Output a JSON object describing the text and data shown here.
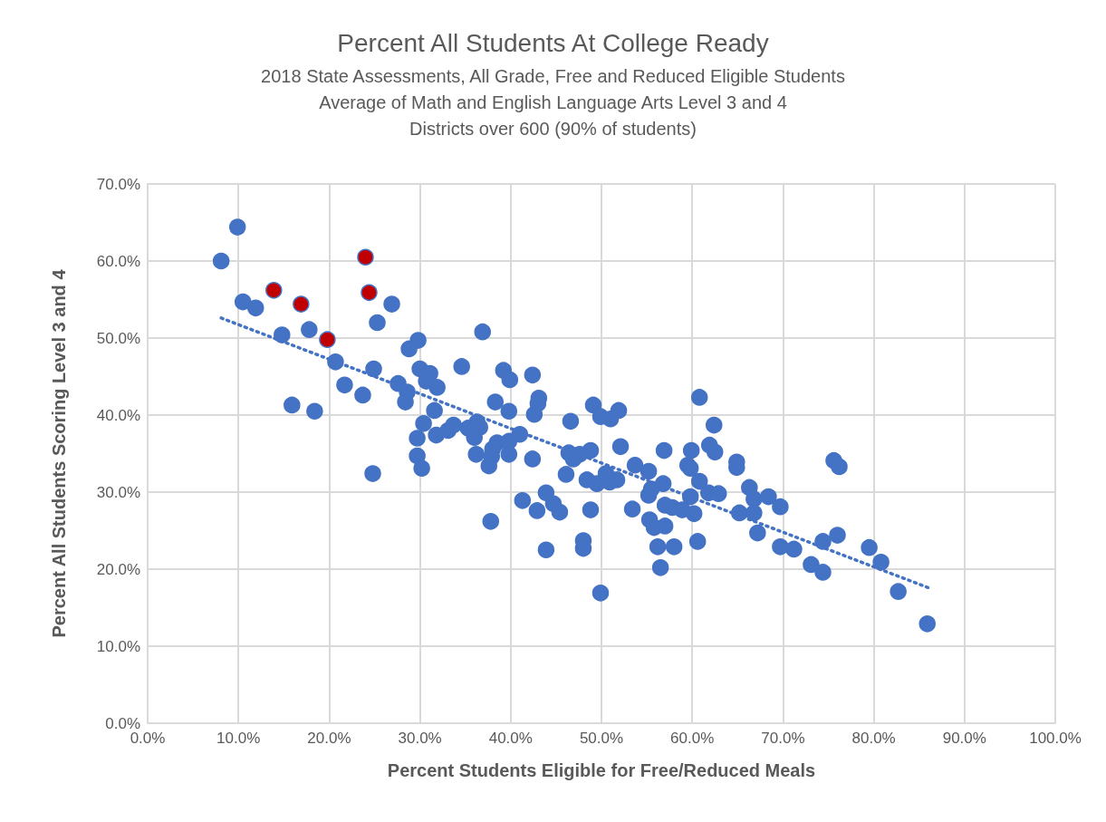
{
  "chart_data": {
    "type": "scatter",
    "title": "Percent All Students At College Ready",
    "subtitle": "2018 State Assessments, All Grade, Free and Reduced Eligible Students\nAverage of Math and English Language Arts Level 3 and 4\nDistricts over 600 (90% of students)",
    "xlabel": "Percent Students Eligible for Free/Reduced Meals",
    "ylabel": "Percent All Students Scoring Level 3 and 4",
    "xlim": [
      0,
      100
    ],
    "xticks": [
      {
        "value": 0,
        "label": "0.0%"
      },
      {
        "value": 10,
        "label": "10.0%"
      },
      {
        "value": 20,
        "label": "20.0%"
      },
      {
        "value": 30,
        "label": "30.0%"
      },
      {
        "value": 40,
        "label": "40.0%"
      },
      {
        "value": 50,
        "label": "50.0%"
      },
      {
        "value": 60,
        "label": "60.0%"
      },
      {
        "value": 70,
        "label": "70.0%"
      },
      {
        "value": 80,
        "label": "80.0%"
      },
      {
        "value": 90,
        "label": "90.0%"
      },
      {
        "value": 100,
        "label": "100.0%"
      }
    ],
    "ylim": [
      0,
      70
    ],
    "yticks": [
      {
        "value": 0,
        "label": "0.0%"
      },
      {
        "value": 10,
        "label": "10.0%"
      },
      {
        "value": 20,
        "label": "20.0%"
      },
      {
        "value": 30,
        "label": "30.0%"
      },
      {
        "value": 40,
        "label": "40.0%"
      },
      {
        "value": 50,
        "label": "50.0%"
      },
      {
        "value": 60,
        "label": "60.0%"
      },
      {
        "value": 70,
        "label": "70.0%"
      }
    ],
    "grid": true,
    "marker": "circle",
    "series": [
      {
        "color": "#4472c4",
        "x": [
          9.9,
          8.1,
          10.5,
          11.9,
          14.8,
          17.8,
          26.9,
          25.3,
          20.7,
          24.9,
          21.7,
          23.7,
          15.9,
          18.4,
          24.8,
          29.8,
          28.8,
          36.9,
          30.0,
          31.1,
          30.7,
          31.9,
          27.6,
          28.6,
          28.4,
          31.6,
          34.6,
          39.2,
          39.9,
          38.3,
          39.8,
          41.0,
          30.4,
          29.7,
          31.8,
          33.1,
          33.7,
          35.3,
          36.3,
          36.6,
          36.0,
          36.2,
          38.5,
          38.0,
          37.9,
          37.6,
          39.8,
          39.8,
          29.7,
          30.2,
          37.8,
          41.3,
          42.4,
          43.1,
          43.0,
          42.6,
          46.6,
          49.1,
          49.9,
          51.0,
          51.9,
          60.8,
          62.4,
          52.1,
          48.8,
          46.4,
          47.6,
          46.9,
          42.4,
          46.1,
          48.4,
          49.5,
          50.9,
          51.7,
          50.5,
          53.7,
          55.2,
          56.9,
          59.9,
          59.5,
          59.8,
          61.9,
          62.5,
          64.9,
          64.9,
          60.8,
          75.6,
          76.2,
          56.8,
          55.5,
          55.2,
          59.8,
          61.8,
          62.9,
          66.3,
          66.8,
          68.4,
          69.7,
          65.2,
          66.8,
          67.2,
          43.9,
          44.7,
          45.4,
          42.9,
          48.8,
          53.4,
          57.0,
          57.8,
          58.9,
          60.2,
          55.3,
          55.8,
          57.0,
          48.0,
          48.0,
          43.9,
          56.2,
          58.0,
          60.6,
          56.5,
          49.9,
          69.7,
          71.2,
          73.1,
          74.4,
          74.4,
          76.0,
          79.5,
          80.8,
          82.7,
          85.9
        ],
        "values": [
          64.4,
          60.0,
          54.7,
          53.9,
          50.4,
          51.1,
          54.4,
          52.0,
          46.9,
          46.0,
          43.9,
          42.6,
          41.3,
          40.5,
          32.4,
          49.7,
          48.6,
          50.8,
          46.0,
          45.4,
          44.4,
          43.6,
          44.1,
          43.0,
          41.7,
          40.6,
          46.3,
          45.8,
          44.6,
          41.7,
          40.5,
          37.5,
          38.9,
          37.0,
          37.4,
          38.0,
          38.7,
          38.3,
          39.1,
          38.4,
          37.1,
          34.9,
          36.4,
          35.6,
          34.6,
          33.4,
          36.6,
          34.9,
          34.7,
          33.1,
          26.2,
          28.9,
          45.2,
          42.2,
          41.5,
          40.1,
          39.2,
          41.3,
          39.8,
          39.5,
          40.6,
          42.3,
          38.7,
          35.9,
          35.4,
          35.1,
          34.9,
          34.3,
          34.3,
          32.3,
          31.6,
          31.1,
          31.3,
          31.6,
          32.4,
          33.5,
          32.7,
          35.4,
          35.4,
          33.5,
          33.1,
          36.1,
          35.2,
          33.9,
          33.2,
          31.4,
          34.1,
          33.3,
          31.1,
          30.4,
          29.6,
          29.4,
          29.9,
          29.8,
          30.6,
          29.1,
          29.4,
          28.1,
          27.3,
          27.3,
          24.7,
          29.9,
          28.5,
          27.4,
          27.6,
          27.7,
          27.8,
          28.3,
          28.0,
          27.7,
          27.2,
          26.4,
          25.4,
          25.6,
          23.7,
          22.7,
          22.5,
          22.9,
          22.9,
          23.6,
          20.2,
          16.9,
          22.9,
          22.6,
          20.6,
          23.6,
          19.6,
          24.4,
          22.8,
          20.9,
          17.1,
          12.9
        ]
      },
      {
        "color": "#c00000",
        "x": [
          13.9,
          16.9,
          19.8,
          24.0,
          24.4
        ],
        "values": [
          56.2,
          54.4,
          49.8,
          60.5,
          55.9
        ]
      },
      {
        "type": "line",
        "color": "#4472c4",
        "line_style": "dotted",
        "marker": "none",
        "x": [
          8.1,
          86.0
        ],
        "values": [
          52.6,
          17.6
        ]
      }
    ]
  }
}
